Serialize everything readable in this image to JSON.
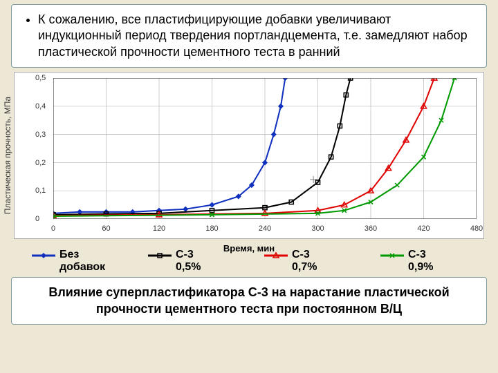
{
  "top_text": "К сожалению, все пластифицирующие добавки увеличивают индукционный период твердения портландцемента, т.е. замедляют набор пластической прочности цементного теста в ранний",
  "caption": "Влияние суперпластификатора С-3 на нарастание пластической прочности цементного теста при постоянном В/Ц",
  "chart": {
    "ylabel": "Пластическая прочность, МПа",
    "xlabel": "Время, мин",
    "xlim": [
      0,
      480
    ],
    "ylim": [
      0,
      0.5
    ],
    "xtick_step": 60,
    "ytick_step": 0.1,
    "grid_color": "#b8b8b8",
    "background_color": "#ffffff",
    "series": [
      {
        "name": "Без добавок",
        "color": "#1030c0",
        "marker": "diamond",
        "width": 2,
        "points": [
          [
            0,
            0.02
          ],
          [
            30,
            0.025
          ],
          [
            60,
            0.025
          ],
          [
            90,
            0.025
          ],
          [
            120,
            0.03
          ],
          [
            150,
            0.035
          ],
          [
            180,
            0.05
          ],
          [
            210,
            0.08
          ],
          [
            225,
            0.12
          ],
          [
            240,
            0.2
          ],
          [
            250,
            0.3
          ],
          [
            258,
            0.4
          ],
          [
            263,
            0.5
          ]
        ]
      },
      {
        "name": "С-3 0,5%",
        "color": "#000000",
        "marker": "square",
        "width": 2,
        "points": [
          [
            0,
            0.015
          ],
          [
            60,
            0.018
          ],
          [
            120,
            0.02
          ],
          [
            180,
            0.03
          ],
          [
            240,
            0.04
          ],
          [
            270,
            0.06
          ],
          [
            300,
            0.13
          ],
          [
            315,
            0.22
          ],
          [
            325,
            0.33
          ],
          [
            332,
            0.44
          ],
          [
            337,
            0.5
          ]
        ]
      },
      {
        "name": "С-3 0,7%",
        "color": "#e00000",
        "marker": "triangle",
        "width": 2,
        "points": [
          [
            0,
            0.012
          ],
          [
            120,
            0.015
          ],
          [
            240,
            0.02
          ],
          [
            300,
            0.03
          ],
          [
            330,
            0.05
          ],
          [
            360,
            0.1
          ],
          [
            380,
            0.18
          ],
          [
            400,
            0.28
          ],
          [
            420,
            0.4
          ],
          [
            432,
            0.5
          ]
        ]
      },
      {
        "name": "С-3 0,9%",
        "color": "#009a00",
        "marker": "x",
        "width": 2,
        "points": [
          [
            0,
            0.01
          ],
          [
            180,
            0.015
          ],
          [
            300,
            0.02
          ],
          [
            330,
            0.03
          ],
          [
            360,
            0.06
          ],
          [
            390,
            0.12
          ],
          [
            420,
            0.22
          ],
          [
            440,
            0.35
          ],
          [
            455,
            0.5
          ]
        ]
      }
    ]
  }
}
